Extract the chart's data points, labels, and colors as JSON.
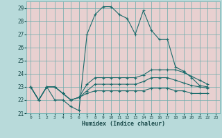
{
  "xlabel": "Humidex (Indice chaleur)",
  "bg_color": "#b8dada",
  "grid_bg_color": "#e8d0d0",
  "grid_color": "#6aacac",
  "line_color": "#1a6b6b",
  "xlim": [
    -0.5,
    23.5
  ],
  "ylim": [
    21,
    29.5
  ],
  "yticks": [
    21,
    22,
    23,
    24,
    25,
    26,
    27,
    28,
    29
  ],
  "xticks": [
    0,
    1,
    2,
    3,
    4,
    5,
    6,
    7,
    8,
    9,
    10,
    11,
    12,
    13,
    14,
    15,
    16,
    17,
    18,
    19,
    20,
    21,
    22,
    23
  ],
  "series": [
    [
      23,
      22,
      23,
      22,
      22,
      21.5,
      21.2,
      27,
      28.5,
      29.1,
      29.1,
      28.5,
      28.2,
      27,
      28.8,
      27.3,
      26.6,
      26.6,
      24.5,
      24.2,
      23.7,
      23.1,
      23
    ],
    [
      23,
      22,
      23,
      23,
      22.5,
      22,
      22.2,
      23.2,
      23.7,
      23.7,
      23.7,
      23.7,
      23.7,
      23.7,
      23.9,
      24.3,
      24.3,
      24.3,
      24.3,
      24.1,
      23.8,
      23.5,
      23.2
    ],
    [
      23,
      22,
      23,
      23,
      22.5,
      22,
      22.2,
      22.7,
      23.2,
      23.2,
      23.2,
      23.2,
      23.2,
      23.2,
      23.4,
      23.7,
      23.7,
      23.7,
      23.5,
      23.3,
      23.1,
      23.0,
      22.9
    ],
    [
      23,
      22,
      23,
      23,
      22.5,
      22,
      22.2,
      22.5,
      22.7,
      22.7,
      22.7,
      22.7,
      22.7,
      22.7,
      22.7,
      22.9,
      22.9,
      22.9,
      22.7,
      22.7,
      22.5,
      22.5,
      22.5
    ]
  ]
}
